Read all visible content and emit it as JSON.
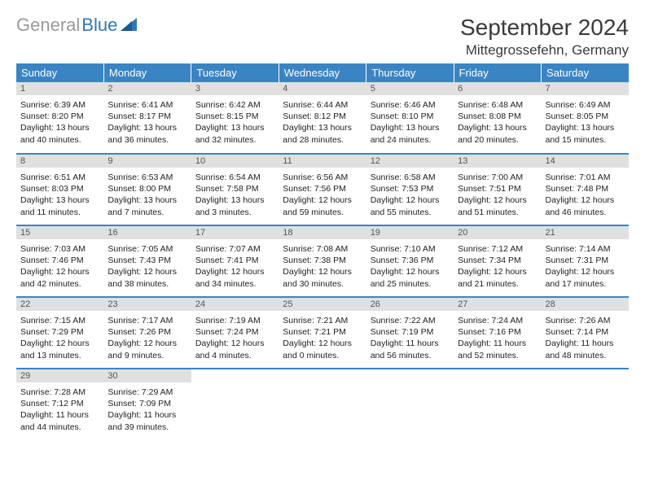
{
  "logo": {
    "part1": "General",
    "part2": "Blue"
  },
  "title": "September 2024",
  "location": "Mittegrossefehn, Germany",
  "colors": {
    "header_bg": "#3a84c4",
    "header_text": "#ffffff",
    "daynum_bg": "#e0e0e0",
    "logo_gray": "#9a9a9a",
    "logo_blue": "#2f78b8",
    "row_border": "#3a84c4"
  },
  "day_headers": [
    "Sunday",
    "Monday",
    "Tuesday",
    "Wednesday",
    "Thursday",
    "Friday",
    "Saturday"
  ],
  "weeks": [
    [
      {
        "n": 1,
        "sr": "6:39 AM",
        "ss": "8:20 PM",
        "dl": "13 hours and 40 minutes."
      },
      {
        "n": 2,
        "sr": "6:41 AM",
        "ss": "8:17 PM",
        "dl": "13 hours and 36 minutes."
      },
      {
        "n": 3,
        "sr": "6:42 AM",
        "ss": "8:15 PM",
        "dl": "13 hours and 32 minutes."
      },
      {
        "n": 4,
        "sr": "6:44 AM",
        "ss": "8:12 PM",
        "dl": "13 hours and 28 minutes."
      },
      {
        "n": 5,
        "sr": "6:46 AM",
        "ss": "8:10 PM",
        "dl": "13 hours and 24 minutes."
      },
      {
        "n": 6,
        "sr": "6:48 AM",
        "ss": "8:08 PM",
        "dl": "13 hours and 20 minutes."
      },
      {
        "n": 7,
        "sr": "6:49 AM",
        "ss": "8:05 PM",
        "dl": "13 hours and 15 minutes."
      }
    ],
    [
      {
        "n": 8,
        "sr": "6:51 AM",
        "ss": "8:03 PM",
        "dl": "13 hours and 11 minutes."
      },
      {
        "n": 9,
        "sr": "6:53 AM",
        "ss": "8:00 PM",
        "dl": "13 hours and 7 minutes."
      },
      {
        "n": 10,
        "sr": "6:54 AM",
        "ss": "7:58 PM",
        "dl": "13 hours and 3 minutes."
      },
      {
        "n": 11,
        "sr": "6:56 AM",
        "ss": "7:56 PM",
        "dl": "12 hours and 59 minutes."
      },
      {
        "n": 12,
        "sr": "6:58 AM",
        "ss": "7:53 PM",
        "dl": "12 hours and 55 minutes."
      },
      {
        "n": 13,
        "sr": "7:00 AM",
        "ss": "7:51 PM",
        "dl": "12 hours and 51 minutes."
      },
      {
        "n": 14,
        "sr": "7:01 AM",
        "ss": "7:48 PM",
        "dl": "12 hours and 46 minutes."
      }
    ],
    [
      {
        "n": 15,
        "sr": "7:03 AM",
        "ss": "7:46 PM",
        "dl": "12 hours and 42 minutes."
      },
      {
        "n": 16,
        "sr": "7:05 AM",
        "ss": "7:43 PM",
        "dl": "12 hours and 38 minutes."
      },
      {
        "n": 17,
        "sr": "7:07 AM",
        "ss": "7:41 PM",
        "dl": "12 hours and 34 minutes."
      },
      {
        "n": 18,
        "sr": "7:08 AM",
        "ss": "7:38 PM",
        "dl": "12 hours and 30 minutes."
      },
      {
        "n": 19,
        "sr": "7:10 AM",
        "ss": "7:36 PM",
        "dl": "12 hours and 25 minutes."
      },
      {
        "n": 20,
        "sr": "7:12 AM",
        "ss": "7:34 PM",
        "dl": "12 hours and 21 minutes."
      },
      {
        "n": 21,
        "sr": "7:14 AM",
        "ss": "7:31 PM",
        "dl": "12 hours and 17 minutes."
      }
    ],
    [
      {
        "n": 22,
        "sr": "7:15 AM",
        "ss": "7:29 PM",
        "dl": "12 hours and 13 minutes."
      },
      {
        "n": 23,
        "sr": "7:17 AM",
        "ss": "7:26 PM",
        "dl": "12 hours and 9 minutes."
      },
      {
        "n": 24,
        "sr": "7:19 AM",
        "ss": "7:24 PM",
        "dl": "12 hours and 4 minutes."
      },
      {
        "n": 25,
        "sr": "7:21 AM",
        "ss": "7:21 PM",
        "dl": "12 hours and 0 minutes."
      },
      {
        "n": 26,
        "sr": "7:22 AM",
        "ss": "7:19 PM",
        "dl": "11 hours and 56 minutes."
      },
      {
        "n": 27,
        "sr": "7:24 AM",
        "ss": "7:16 PM",
        "dl": "11 hours and 52 minutes."
      },
      {
        "n": 28,
        "sr": "7:26 AM",
        "ss": "7:14 PM",
        "dl": "11 hours and 48 minutes."
      }
    ],
    [
      {
        "n": 29,
        "sr": "7:28 AM",
        "ss": "7:12 PM",
        "dl": "11 hours and 44 minutes."
      },
      {
        "n": 30,
        "sr": "7:29 AM",
        "ss": "7:09 PM",
        "dl": "11 hours and 39 minutes."
      },
      null,
      null,
      null,
      null,
      null
    ]
  ],
  "labels": {
    "sunrise": "Sunrise:",
    "sunset": "Sunset:",
    "daylight": "Daylight:"
  }
}
